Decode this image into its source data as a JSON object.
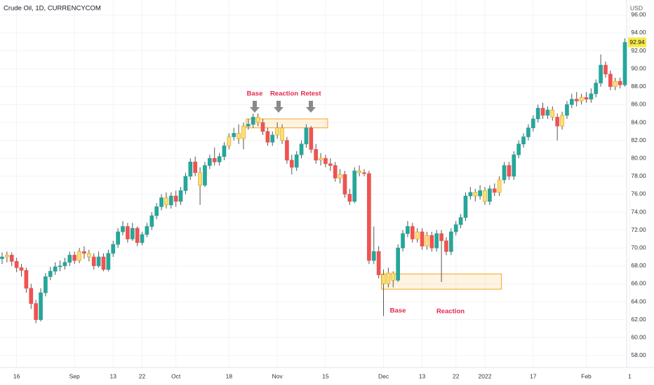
{
  "chart_data": {
    "type": "candlestick",
    "title": "Crude Oil, 1D, CURRENCYCOM",
    "currency": "USD",
    "last_price": 92.94,
    "ylim": [
      56.66,
      97.67
    ],
    "yticks": [
      {
        "value": 58,
        "label": "58.00"
      },
      {
        "value": 60,
        "label": "60.00"
      },
      {
        "value": 62,
        "label": "62.00"
      },
      {
        "value": 64,
        "label": "64.00"
      },
      {
        "value": 66,
        "label": "66.00"
      },
      {
        "value": 68,
        "label": "68.00"
      },
      {
        "value": 70,
        "label": "70.00"
      },
      {
        "value": 72,
        "label": "72.00"
      },
      {
        "value": 74,
        "label": "74.00"
      },
      {
        "value": 76,
        "label": "76.00"
      },
      {
        "value": 78,
        "label": "78.00"
      },
      {
        "value": 80,
        "label": "80.00"
      },
      {
        "value": 82,
        "label": "82.00"
      },
      {
        "value": 84,
        "label": "84.00"
      },
      {
        "value": 86,
        "label": "86.00"
      },
      {
        "value": 88,
        "label": "88.00"
      },
      {
        "value": 90,
        "label": "90.00"
      },
      {
        "value": 92,
        "label": "92.00"
      },
      {
        "value": 94,
        "label": "94.00"
      },
      {
        "value": 96,
        "label": "96.00"
      }
    ],
    "xticks": [
      {
        "value": 3,
        "label": "16"
      },
      {
        "value": 15,
        "label": "Sep"
      },
      {
        "value": 23,
        "label": "13"
      },
      {
        "value": 29,
        "label": "22"
      },
      {
        "value": 36,
        "label": "Oct"
      },
      {
        "value": 47,
        "label": "18"
      },
      {
        "value": 57,
        "label": "Nov"
      },
      {
        "value": 67,
        "label": "15"
      },
      {
        "value": 79,
        "label": "Dec"
      },
      {
        "value": 87,
        "label": "13"
      },
      {
        "value": 94,
        "label": "22"
      },
      {
        "value": 100,
        "label": "2022"
      },
      {
        "value": 110,
        "label": "17"
      },
      {
        "value": 121,
        "label": "Feb"
      },
      {
        "value": 130,
        "label": "1"
      }
    ],
    "grid": true,
    "up_color": "#26a69a",
    "down_color": "#ef5350",
    "highlight_color": "#f9e07a",
    "highlighted": [
      1,
      16,
      18,
      34,
      41,
      47,
      49,
      50,
      53,
      57,
      58,
      66,
      70,
      74,
      79,
      80,
      81,
      86,
      88,
      98,
      100,
      103,
      114,
      116,
      120,
      127
    ],
    "ohlc": [
      [
        68.8,
        69.5,
        68.2,
        69.0
      ],
      [
        69.0,
        69.6,
        68.4,
        69.2
      ],
      [
        69.2,
        69.5,
        68.0,
        68.5
      ],
      [
        68.5,
        68.9,
        67.3,
        67.8
      ],
      [
        67.8,
        68.2,
        66.8,
        67.5
      ],
      [
        67.5,
        67.8,
        65.0,
        65.5
      ],
      [
        65.5,
        66.0,
        63.2,
        63.8
      ],
      [
        63.8,
        64.2,
        61.6,
        62.0
      ],
      [
        62.0,
        65.5,
        61.8,
        65.0
      ],
      [
        65.0,
        67.2,
        64.6,
        66.8
      ],
      [
        66.8,
        67.9,
        66.4,
        67.4
      ],
      [
        67.4,
        68.4,
        67.0,
        67.9
      ],
      [
        67.9,
        68.6,
        67.4,
        68.0
      ],
      [
        68.0,
        68.9,
        67.6,
        68.4
      ],
      [
        68.4,
        69.6,
        68.0,
        69.2
      ],
      [
        69.2,
        69.6,
        68.2,
        68.6
      ],
      [
        68.6,
        70.0,
        68.3,
        69.6
      ],
      [
        69.6,
        70.2,
        68.8,
        69.4
      ],
      [
        69.4,
        69.8,
        68.5,
        69.0
      ],
      [
        69.0,
        69.4,
        67.6,
        68.0
      ],
      [
        68.0,
        69.6,
        67.8,
        69.0
      ],
      [
        69.0,
        69.4,
        67.4,
        67.6
      ],
      [
        67.6,
        69.8,
        67.4,
        69.4
      ],
      [
        69.4,
        70.8,
        69.0,
        70.4
      ],
      [
        70.4,
        72.2,
        70.0,
        71.8
      ],
      [
        71.8,
        73.0,
        71.4,
        72.4
      ],
      [
        72.4,
        72.8,
        70.6,
        71.0
      ],
      [
        71.0,
        72.8,
        70.8,
        72.2
      ],
      [
        72.2,
        72.4,
        70.2,
        70.6
      ],
      [
        70.6,
        71.8,
        70.3,
        71.5
      ],
      [
        71.5,
        72.8,
        71.2,
        72.4
      ],
      [
        72.4,
        74.0,
        72.0,
        73.6
      ],
      [
        73.6,
        75.0,
        73.2,
        74.6
      ],
      [
        74.6,
        76.0,
        74.2,
        75.6
      ],
      [
        75.6,
        76.2,
        74.4,
        74.8
      ],
      [
        74.8,
        76.2,
        74.4,
        75.8
      ],
      [
        75.8,
        76.4,
        74.6,
        75.2
      ],
      [
        75.2,
        76.8,
        74.8,
        76.4
      ],
      [
        76.4,
        78.4,
        76.0,
        78.0
      ],
      [
        78.0,
        80.0,
        77.6,
        79.6
      ],
      [
        79.6,
        80.2,
        78.0,
        78.4
      ],
      [
        78.4,
        79.0,
        74.8,
        77.0
      ],
      [
        77.0,
        79.6,
        76.8,
        79.2
      ],
      [
        79.2,
        80.4,
        78.8,
        80.0
      ],
      [
        80.0,
        81.2,
        79.2,
        79.6
      ],
      [
        79.6,
        80.6,
        79.2,
        80.2
      ],
      [
        80.2,
        81.8,
        79.8,
        81.4
      ],
      [
        81.4,
        82.8,
        81.0,
        82.4
      ],
      [
        82.4,
        83.4,
        82.0,
        82.8
      ],
      [
        82.8,
        83.8,
        81.6,
        82.2
      ],
      [
        82.2,
        84.0,
        81.0,
        83.6
      ],
      [
        83.6,
        84.4,
        83.2,
        83.8
      ],
      [
        83.8,
        85.0,
        83.4,
        84.6
      ],
      [
        84.6,
        85.0,
        83.6,
        84.0
      ],
      [
        84.0,
        84.4,
        82.6,
        83.0
      ],
      [
        83.0,
        83.4,
        81.4,
        81.8
      ],
      [
        81.8,
        83.0,
        81.4,
        82.6
      ],
      [
        82.6,
        84.0,
        82.2,
        83.4
      ],
      [
        83.4,
        83.8,
        81.6,
        82.0
      ],
      [
        82.0,
        82.4,
        79.4,
        79.8
      ],
      [
        79.8,
        80.4,
        78.2,
        79.0
      ],
      [
        79.0,
        80.8,
        78.6,
        80.4
      ],
      [
        80.4,
        82.0,
        80.0,
        81.6
      ],
      [
        81.6,
        83.8,
        81.2,
        83.4
      ],
      [
        83.4,
        83.6,
        80.6,
        81.0
      ],
      [
        81.0,
        81.6,
        79.4,
        79.8
      ],
      [
        79.8,
        80.6,
        79.2,
        80.0
      ],
      [
        80.0,
        80.4,
        79.0,
        79.4
      ],
      [
        79.4,
        80.0,
        78.6,
        79.2
      ],
      [
        79.2,
        79.6,
        77.4,
        77.8
      ],
      [
        77.8,
        78.8,
        77.2,
        78.2
      ],
      [
        78.2,
        78.6,
        75.6,
        76.0
      ],
      [
        76.0,
        76.6,
        74.8,
        75.2
      ],
      [
        75.2,
        79.0,
        75.0,
        78.6
      ],
      [
        78.6,
        79.2,
        78.0,
        78.4
      ],
      [
        78.4,
        78.8,
        78.0,
        78.3
      ],
      [
        78.3,
        78.6,
        68.2,
        68.6
      ],
      [
        68.6,
        72.4,
        68.2,
        69.6
      ],
      [
        69.6,
        70.2,
        66.6,
        67.0
      ],
      [
        67.0,
        67.6,
        62.4,
        66.0
      ],
      [
        66.0,
        67.8,
        65.6,
        67.2
      ],
      [
        67.2,
        67.4,
        65.6,
        66.4
      ],
      [
        66.4,
        70.4,
        66.2,
        70.0
      ],
      [
        70.0,
        72.0,
        69.6,
        71.6
      ],
      [
        71.6,
        73.0,
        71.2,
        72.4
      ],
      [
        72.4,
        72.8,
        70.6,
        71.0
      ],
      [
        71.0,
        72.2,
        70.6,
        71.8
      ],
      [
        71.8,
        72.2,
        69.8,
        70.2
      ],
      [
        70.2,
        71.8,
        69.8,
        71.4
      ],
      [
        71.4,
        71.8,
        69.6,
        70.0
      ],
      [
        70.0,
        72.0,
        69.6,
        71.6
      ],
      [
        71.6,
        72.0,
        66.2,
        70.8
      ],
      [
        70.8,
        71.2,
        69.2,
        69.6
      ],
      [
        69.6,
        72.2,
        69.2,
        71.8
      ],
      [
        71.8,
        73.0,
        71.4,
        72.6
      ],
      [
        72.6,
        73.8,
        72.2,
        73.4
      ],
      [
        73.4,
        76.2,
        73.0,
        75.8
      ],
      [
        75.8,
        76.8,
        75.4,
        76.2
      ],
      [
        76.2,
        76.6,
        75.2,
        75.8
      ],
      [
        75.8,
        77.0,
        75.4,
        76.4
      ],
      [
        76.4,
        76.8,
        74.8,
        75.2
      ],
      [
        75.2,
        77.0,
        74.8,
        76.6
      ],
      [
        76.6,
        77.2,
        75.8,
        76.2
      ],
      [
        76.2,
        78.0,
        75.8,
        77.6
      ],
      [
        77.6,
        79.6,
        77.2,
        79.2
      ],
      [
        79.2,
        79.6,
        77.6,
        78.0
      ],
      [
        78.0,
        80.8,
        77.6,
        80.4
      ],
      [
        80.4,
        82.0,
        80.0,
        81.6
      ],
      [
        81.6,
        82.8,
        81.2,
        82.4
      ],
      [
        82.4,
        83.8,
        82.0,
        83.4
      ],
      [
        83.4,
        84.8,
        83.0,
        84.4
      ],
      [
        84.4,
        86.0,
        84.0,
        85.6
      ],
      [
        85.6,
        86.2,
        84.4,
        84.8
      ],
      [
        84.8,
        85.8,
        84.4,
        85.4
      ],
      [
        85.4,
        85.8,
        84.2,
        84.6
      ],
      [
        84.6,
        85.0,
        82.0,
        83.6
      ],
      [
        83.6,
        85.2,
        83.2,
        84.8
      ],
      [
        84.8,
        86.4,
        84.4,
        86.0
      ],
      [
        86.0,
        87.2,
        85.6,
        86.6
      ],
      [
        86.6,
        87.4,
        85.8,
        86.4
      ],
      [
        86.4,
        87.2,
        86.0,
        86.8
      ],
      [
        86.8,
        87.4,
        86.2,
        86.6
      ],
      [
        86.6,
        87.8,
        86.2,
        87.2
      ],
      [
        87.2,
        88.8,
        86.8,
        88.4
      ],
      [
        88.4,
        91.6,
        88.0,
        90.4
      ],
      [
        90.4,
        90.8,
        89.0,
        89.4
      ],
      [
        89.4,
        89.8,
        87.6,
        88.0
      ],
      [
        88.0,
        89.0,
        87.6,
        88.6
      ],
      [
        88.6,
        89.0,
        87.8,
        88.2
      ],
      [
        88.2,
        93.4,
        88.0,
        92.94
      ]
    ],
    "zones": [
      {
        "range": [
          83.4,
          84.4
        ],
        "span": [
          51,
          67
        ]
      },
      {
        "range": [
          65.4,
          67.1
        ],
        "span": [
          79,
          103
        ]
      }
    ],
    "annotations": [
      "Base",
      "Reaction",
      "Retest",
      "Base",
      "Reaction"
    ]
  }
}
